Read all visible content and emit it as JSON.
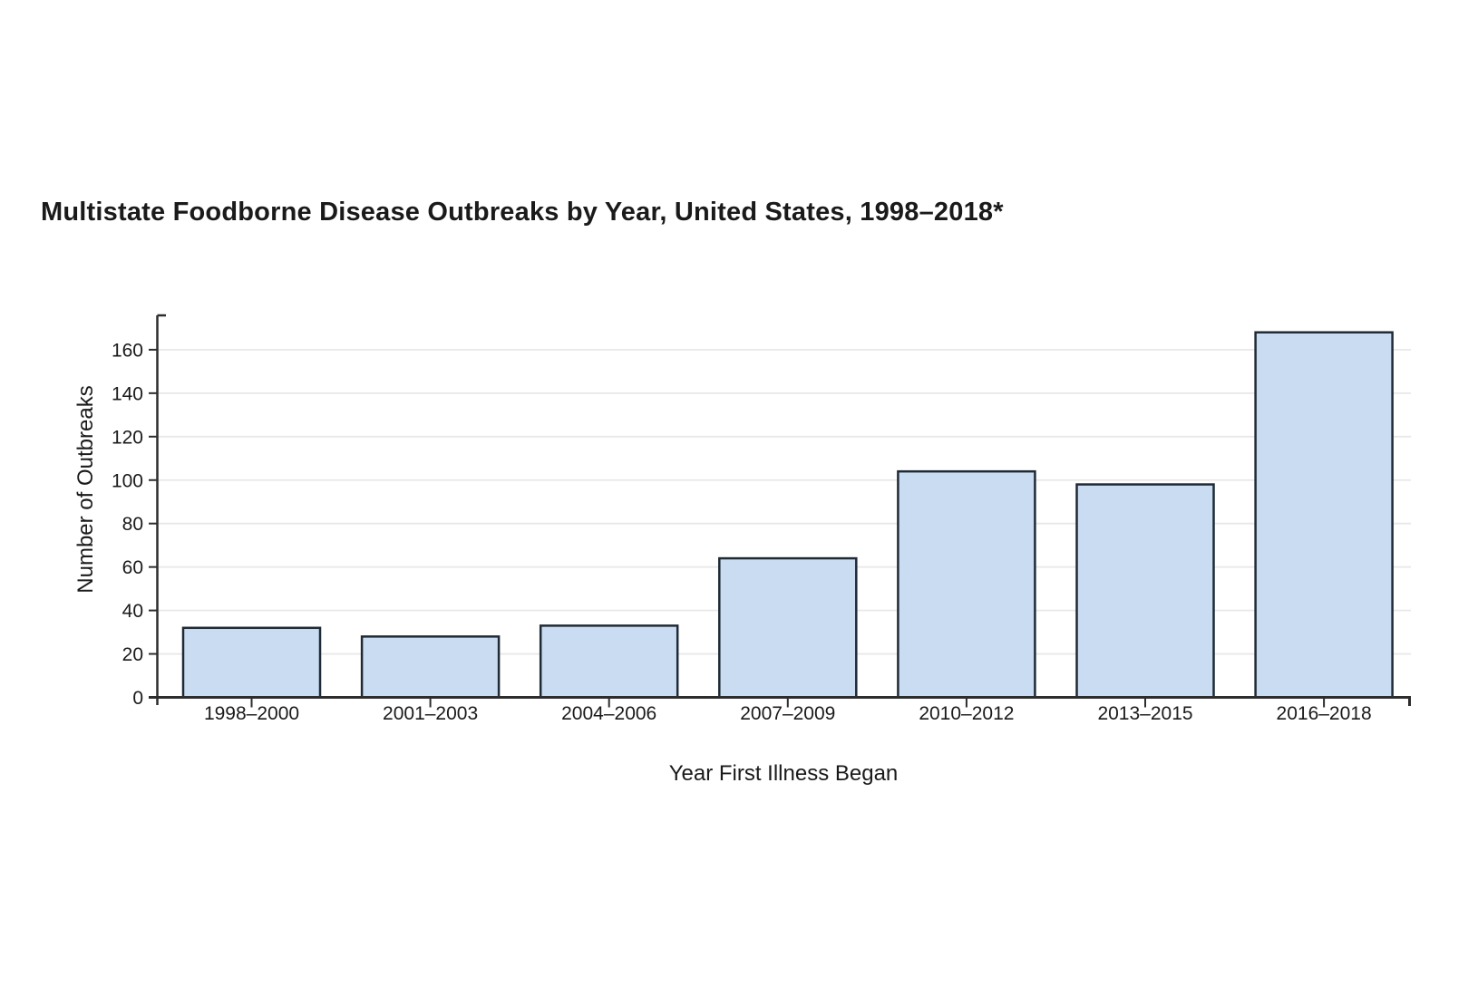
{
  "page": {
    "background": "#ffffff"
  },
  "chart_data": {
    "type": "bar",
    "title": "Multistate Foodborne Disease Outbreaks by Year, United States, 1998–2018*",
    "categories": [
      "1998–2000",
      "2001–2003",
      "2004–2006",
      "2007–2009",
      "2010–2012",
      "2013–2015",
      "2016–2018"
    ],
    "values": [
      32,
      28,
      33,
      64,
      104,
      98,
      168
    ],
    "xlabel": "Year First Illness Began",
    "ylabel": "Number of Outbreaks",
    "ylim": [
      0,
      175
    ],
    "yticks": [
      0,
      20,
      40,
      60,
      80,
      100,
      120,
      140,
      160
    ],
    "grid": true,
    "legend": false,
    "colors": {
      "bar_fill": "#c9dcf1",
      "bar_stroke": "#1e2a36",
      "gridline": "#e8e8e8",
      "axis": "#2d2d2d",
      "text": "#1a1a1a"
    }
  }
}
